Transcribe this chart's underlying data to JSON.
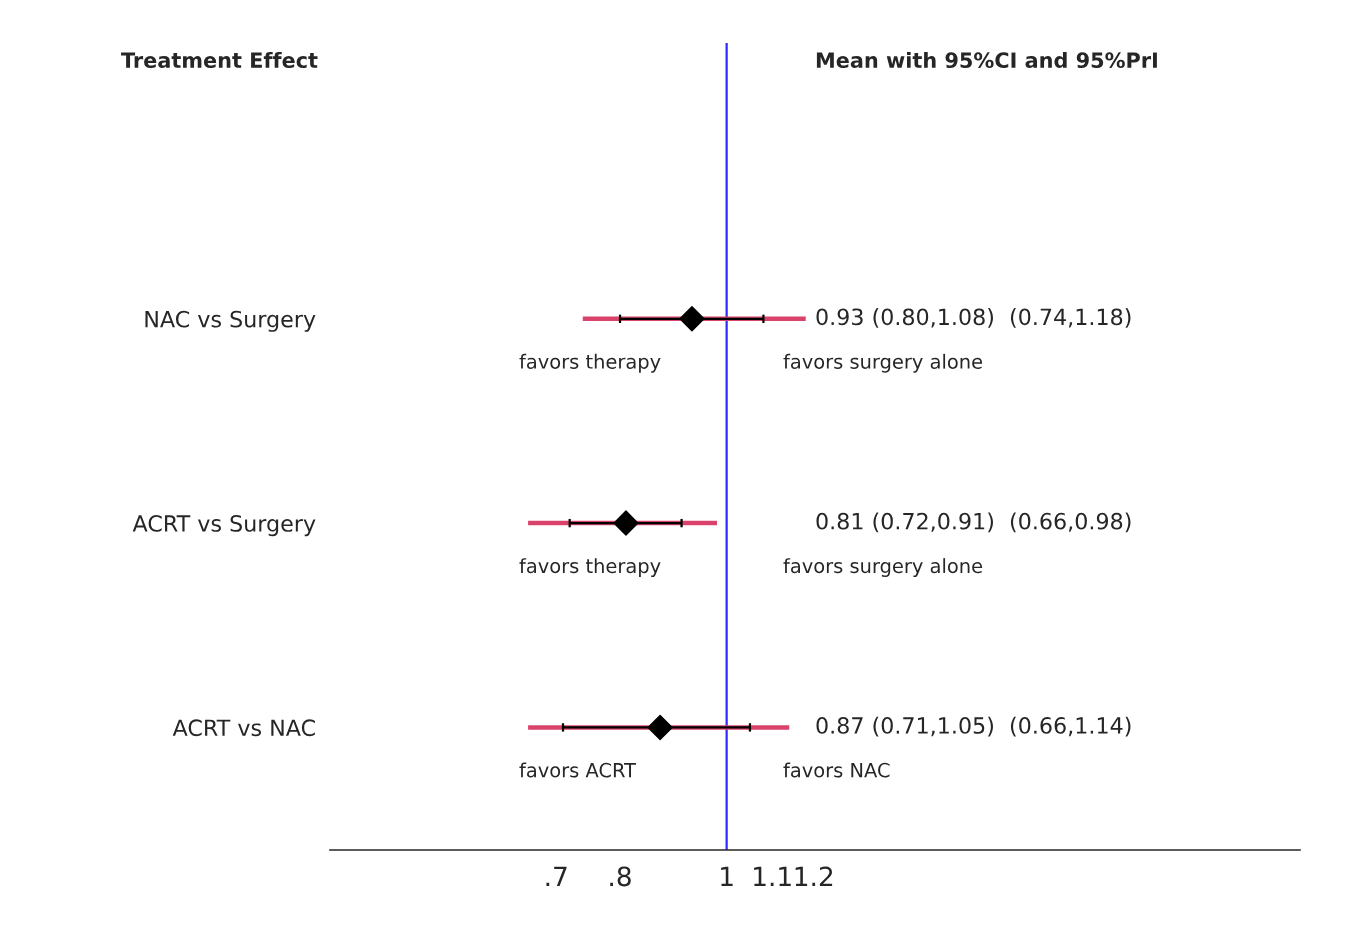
{
  "chart_data": {
    "type": "bar",
    "orientation": "horizontal",
    "categories": [
      "NAC vs Surgery",
      "ACRT vs Surgery",
      "ACRT vs NAC"
    ],
    "series": [
      {
        "color": "#d9436b",
        "base": [
          0.74,
          0.66,
          0.66
        ],
        "values": [
          0.44,
          0.32,
          0.48
        ]
      },
      {
        "type": "scatter",
        "color": "#000000",
        "marker": "diamond",
        "values": [
          0.93,
          0.81,
          0.87
        ],
        "errors": [
          [
            0.8,
            1.08
          ],
          [
            0.72,
            0.91
          ],
          [
            0.71,
            1.05
          ]
        ]
      }
    ],
    "log": "x",
    "xlim": [
      0.436,
      3.32
    ],
    "xticks": [
      {
        "value": 0.7,
        "label": ".7"
      },
      {
        "value": 0.8,
        "label": ".8"
      },
      1,
      1.1,
      1.2
    ],
    "ref_lines": [
      {
        "axis": "x",
        "value": 1,
        "color": "#2b2bff"
      }
    ],
    "annotations": [
      "Treatment Effect",
      "Mean with 95%CI and 95%PrI",
      "0.93 (0.80,1.08)  (0.74,1.18)",
      "favors therapy",
      "favors surgery alone",
      "0.81 (0.72,0.91)  (0.66,0.98)",
      "favors therapy",
      "favors surgery alone",
      "0.87 (0.71,1.05)  (0.66,1.14)",
      "favors ACRT",
      "favors NAC"
    ],
    "grid": false,
    "legend": false
  }
}
